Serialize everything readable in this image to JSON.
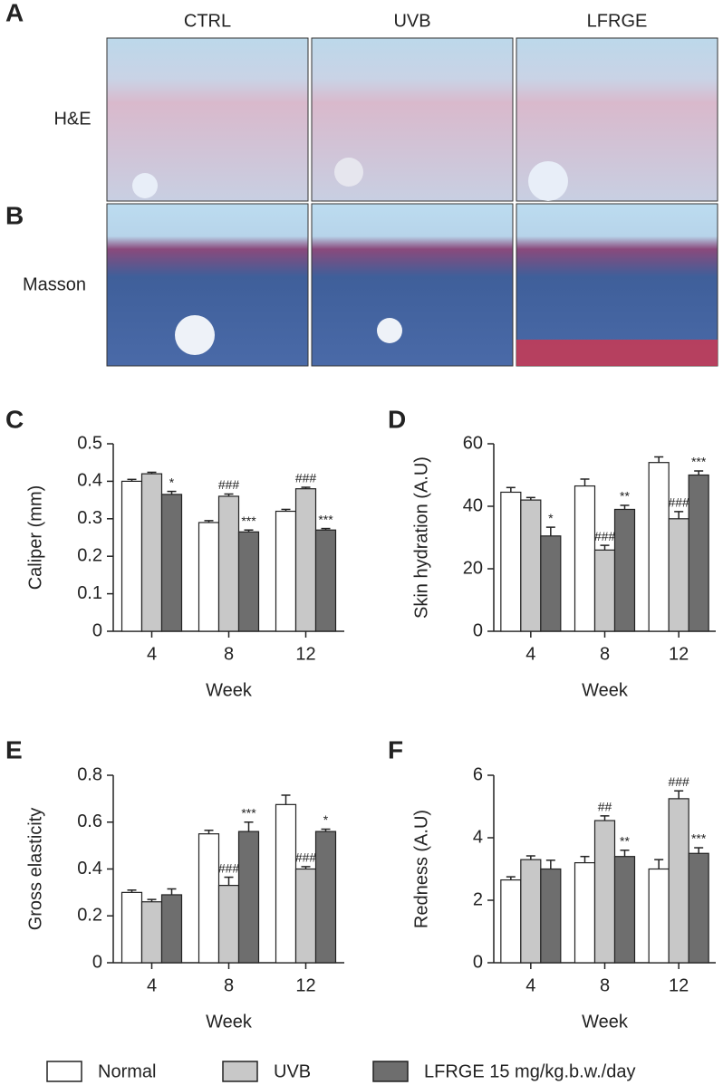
{
  "histology": {
    "panel_labels": [
      "A",
      "B"
    ],
    "columns": [
      "CTRL",
      "UVB",
      "LFRGE"
    ],
    "rows": [
      "H&E",
      "Masson"
    ]
  },
  "legend": [
    {
      "name": "Normal",
      "color": "#ffffff"
    },
    {
      "name": "UVB",
      "color": "#c8c8c8"
    },
    {
      "name": "LFRGE 15 mg/kg.b.w./day",
      "color": "#6e6e6e"
    }
  ],
  "chart_data": [
    {
      "type": "bar",
      "panel": "C",
      "ylabel": "Caliper (mm)",
      "xlabel": "Week",
      "categories": [
        "4",
        "8",
        "12"
      ],
      "ylim": [
        0,
        0.5
      ],
      "yticks": [
        0,
        0.1,
        0.2,
        0.3,
        0.4,
        0.5
      ],
      "series": [
        {
          "values": [
            0.4,
            0.29,
            0.32
          ],
          "errors": [
            0.005,
            0.005,
            0.005
          ],
          "annotations": [
            null,
            null,
            null
          ]
        },
        {
          "values": [
            0.42,
            0.36,
            0.38
          ],
          "errors": [
            0.004,
            0.006,
            0.004
          ],
          "annotations": [
            null,
            "###",
            "###"
          ]
        },
        {
          "values": [
            0.365,
            0.265,
            0.27
          ],
          "errors": [
            0.008,
            0.005,
            0.004
          ],
          "annotations": [
            "*",
            "***",
            "***"
          ]
        }
      ]
    },
    {
      "type": "bar",
      "panel": "D",
      "ylabel": "Skin hydration (A.U)",
      "xlabel": "Week",
      "categories": [
        "4",
        "8",
        "12"
      ],
      "ylim": [
        0,
        60
      ],
      "yticks": [
        0,
        20,
        40,
        60
      ],
      "series": [
        {
          "values": [
            44.5,
            46.5,
            54
          ],
          "errors": [
            1.5,
            2.2,
            1.8
          ],
          "annotations": [
            null,
            null,
            null
          ]
        },
        {
          "values": [
            42,
            26,
            36
          ],
          "errors": [
            0.8,
            1.5,
            2.3
          ],
          "annotations": [
            null,
            "###",
            "###"
          ]
        },
        {
          "values": [
            30.5,
            39,
            50
          ],
          "errors": [
            2.8,
            1.3,
            1.3
          ],
          "annotations": [
            "*",
            "**",
            "***"
          ]
        }
      ]
    },
    {
      "type": "bar",
      "panel": "E",
      "ylabel": "Gross elasticity",
      "xlabel": "Week",
      "categories": [
        "4",
        "8",
        "12"
      ],
      "ylim": [
        0,
        0.8
      ],
      "yticks": [
        0,
        0.2,
        0.4,
        0.6,
        0.8
      ],
      "series": [
        {
          "values": [
            0.3,
            0.55,
            0.675
          ],
          "errors": [
            0.01,
            0.015,
            0.04
          ],
          "annotations": [
            null,
            null,
            null
          ]
        },
        {
          "values": [
            0.26,
            0.33,
            0.4
          ],
          "errors": [
            0.01,
            0.035,
            0.01
          ],
          "annotations": [
            null,
            "###",
            "###"
          ]
        },
        {
          "values": [
            0.29,
            0.56,
            0.56
          ],
          "errors": [
            0.025,
            0.04,
            0.01
          ],
          "annotations": [
            null,
            "***",
            "*"
          ]
        }
      ]
    },
    {
      "type": "bar",
      "panel": "F",
      "ylabel": "Redness (A.U)",
      "xlabel": "Week",
      "categories": [
        "4",
        "8",
        "12"
      ],
      "ylim": [
        0,
        6
      ],
      "yticks": [
        0,
        2,
        4,
        6
      ],
      "series": [
        {
          "values": [
            2.65,
            3.2,
            3.0
          ],
          "errors": [
            0.1,
            0.2,
            0.3
          ],
          "annotations": [
            null,
            null,
            null
          ]
        },
        {
          "values": [
            3.3,
            4.55,
            5.25
          ],
          "errors": [
            0.12,
            0.15,
            0.25
          ],
          "annotations": [
            null,
            "##",
            "###"
          ]
        },
        {
          "values": [
            3.0,
            3.4,
            3.5
          ],
          "errors": [
            0.28,
            0.2,
            0.18
          ],
          "annotations": [
            null,
            "**",
            "***"
          ]
        }
      ]
    }
  ]
}
